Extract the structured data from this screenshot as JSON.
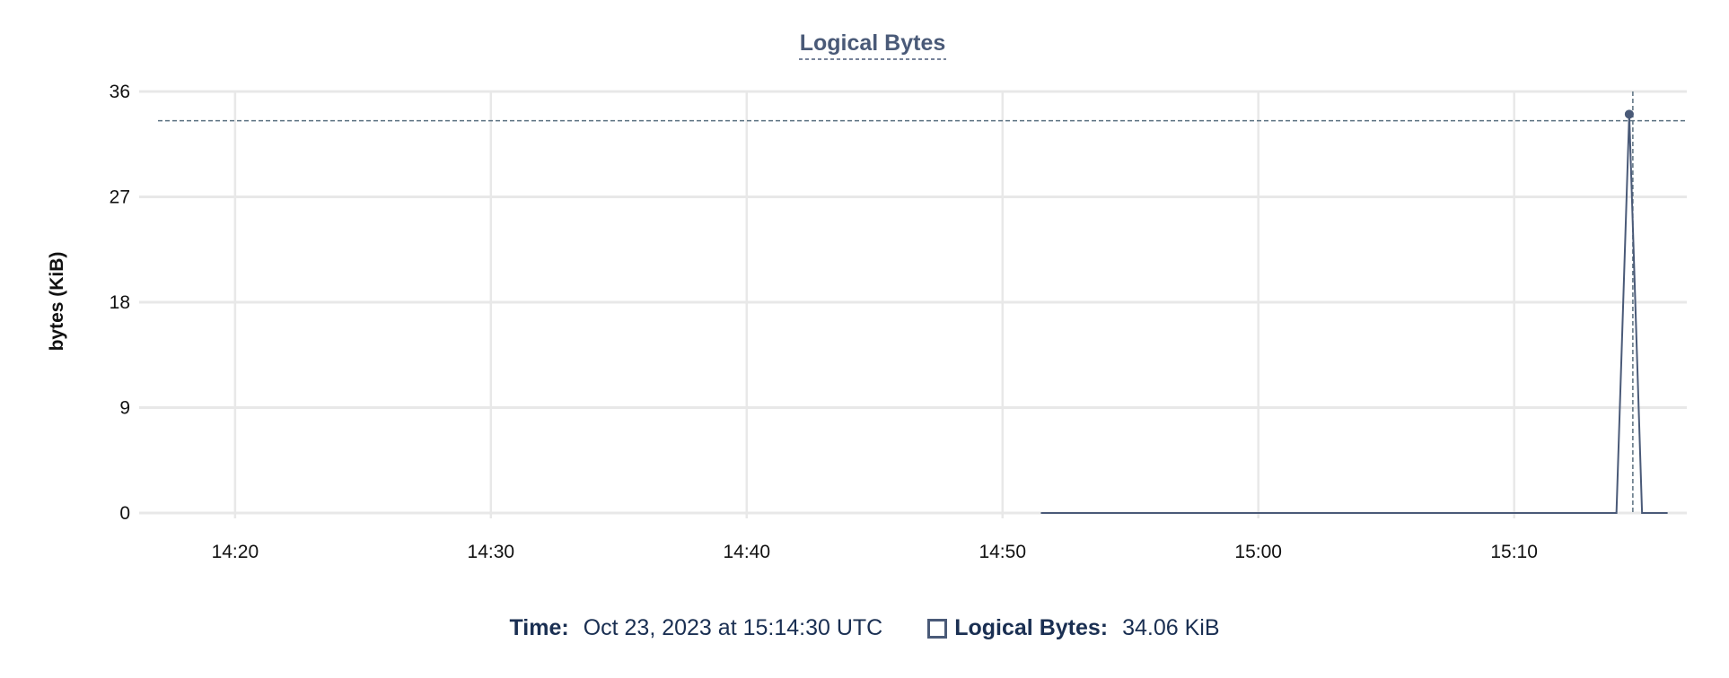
{
  "chart_data": {
    "type": "line",
    "title": "Logical Bytes",
    "xlabel": "",
    "ylabel": "bytes (KiB)",
    "ylim": [
      0,
      36
    ],
    "yticks": [
      0,
      9,
      18,
      27,
      36
    ],
    "xlim": [
      "14:16:15",
      "15:16:45"
    ],
    "xticks": [
      "14:20",
      "14:30",
      "14:40",
      "14:50",
      "15:00",
      "15:10"
    ],
    "grid": true,
    "series": [
      {
        "name": "Logical Bytes",
        "color": "#4a5a78",
        "x": [
          "14:51:30",
          "15:14:00",
          "15:14:30",
          "15:15:00",
          "15:16:00"
        ],
        "y": [
          0,
          0,
          34.06,
          0,
          0
        ]
      }
    ],
    "hover": {
      "x": "15:14:30",
      "y": 34.06
    }
  },
  "legend": {
    "time_label": "Time:",
    "time_value": "Oct 23, 2023 at 15:14:30 UTC",
    "series_label": "Logical Bytes:",
    "series_value": "34.06 KiB"
  }
}
